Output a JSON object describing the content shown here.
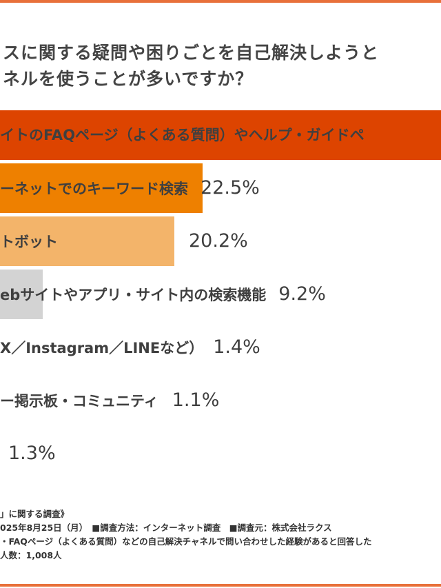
{
  "title_lines": [
    "スに関する疑問や困りごとを自己解決しようと",
    "ネルを使うことが多いですか？"
  ],
  "chart_data": {
    "type": "bar",
    "orientation": "horizontal",
    "categories": [
      "イトのFAQページ（よくある質問）やヘルプ・ガイドペ",
      "ーネットでのキーワード検索",
      "トボット",
      "ebサイトやアプリ・サイト内の検索機能",
      "X／Instagram／LINEなど）",
      "ー掲示板・コミュニティ",
      ""
    ],
    "values": [
      null,
      22.5,
      20.2,
      9.2,
      1.4,
      1.1,
      1.3
    ],
    "value_labels": [
      "",
      "22.5%",
      "20.2%",
      "9.2%",
      "1.4%",
      "1.1%",
      "1.3%"
    ],
    "colors": [
      "#DD4400",
      "#EE8000",
      "#F3B46A",
      "#D3D3D3",
      "#D3D3D3",
      "#D3D3D3",
      "#D3D3D3"
    ],
    "grid": false
  },
  "notes": [
    "」に関する調査》",
    "025年8月25日（月）　■調査方法：インターネット調査　■調査元：株式会社ラクス",
    "・FAQページ（よくある質問）などの自己解決チャネルで問い合わせした経験があると回答した",
    "人数：1,008人"
  ],
  "accent_color": "#E8703A"
}
